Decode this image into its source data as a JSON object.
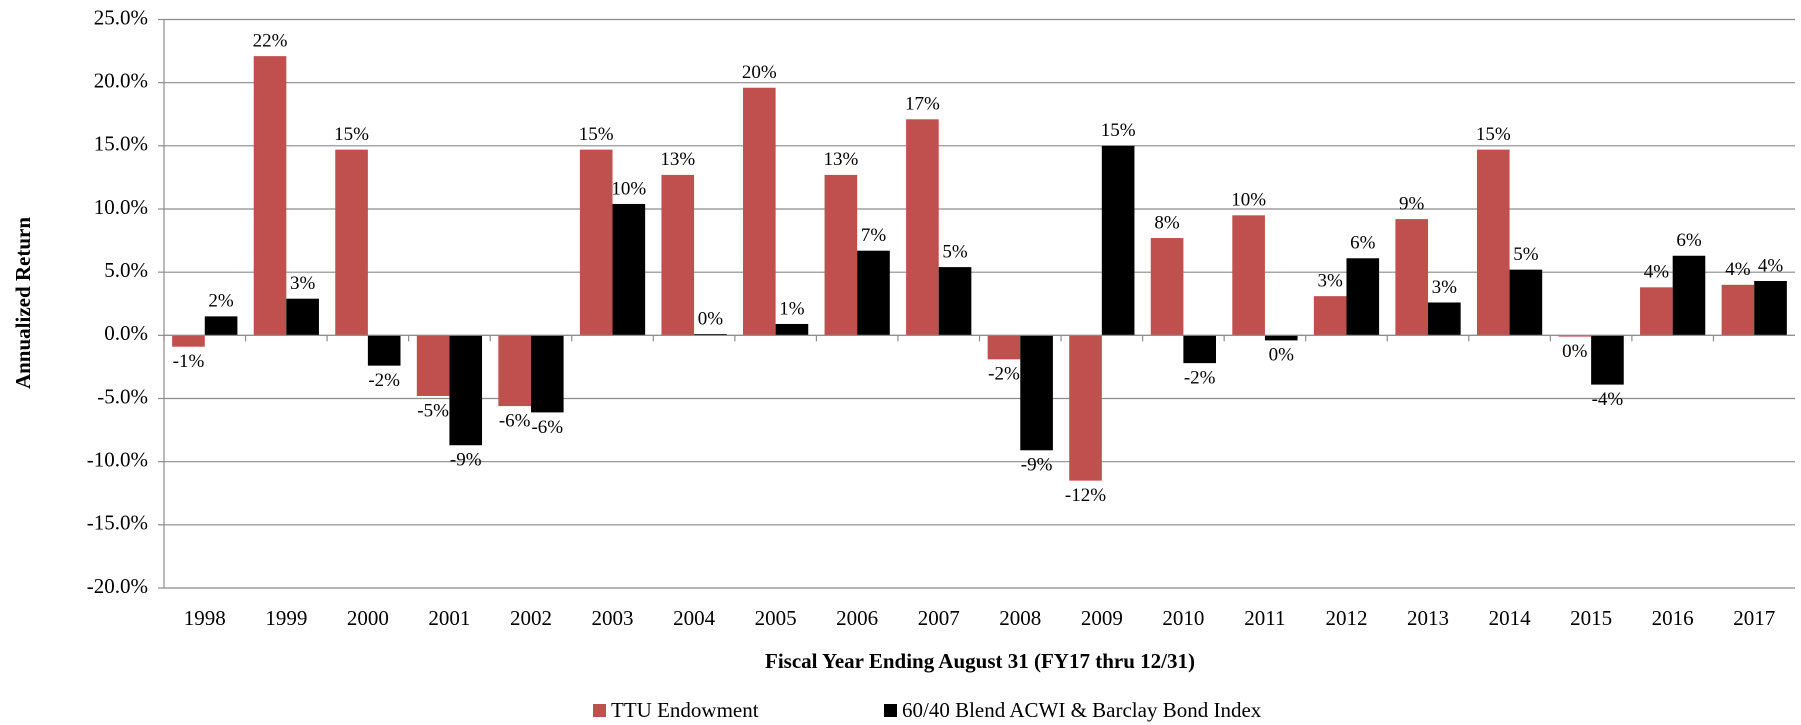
{
  "chart_data": {
    "type": "bar",
    "x_label": "Fiscal Year Ending August 31 (FY17 thru 12/31)",
    "y_label": "Annualized Return",
    "categories": [
      "1998",
      "1999",
      "2000",
      "2001",
      "2002",
      "2003",
      "2004",
      "2005",
      "2006",
      "2007",
      "2008",
      "2009",
      "2010",
      "2011",
      "2012",
      "2013",
      "2014",
      "2015",
      "2016",
      "2017"
    ],
    "series": [
      {
        "name": "TTU Endowment",
        "color": "#c0504d",
        "values": [
          -0.9,
          22.1,
          14.7,
          -4.8,
          -5.6,
          14.7,
          12.7,
          19.6,
          12.7,
          17.1,
          -1.9,
          -11.5,
          7.7,
          9.5,
          3.1,
          9.2,
          14.7,
          -0.1,
          3.8,
          4.0
        ],
        "value_labels": [
          "-1%",
          "22%",
          "15%",
          "-5%",
          "-6%",
          "15%",
          "13%",
          "20%",
          "13%",
          "17%",
          "-2%",
          "-12%",
          "8%",
          "10%",
          "3%",
          "9%",
          "15%",
          "0%",
          "4%",
          "4%"
        ]
      },
      {
        "name": "60/40 Blend ACWI & Barclay Bond Index",
        "color": "#000000",
        "values": [
          1.5,
          2.9,
          -2.4,
          -8.7,
          -6.1,
          10.4,
          0.1,
          0.9,
          6.7,
          5.4,
          -9.1,
          15.0,
          -2.2,
          -0.4,
          6.1,
          2.6,
          5.2,
          -3.9,
          6.3,
          4.3
        ],
        "value_labels": [
          "2%",
          "3%",
          "-2%",
          "-9%",
          "-6%",
          "10%",
          "0%",
          "1%",
          "7%",
          "5%",
          "-9%",
          "15%",
          "-2%",
          "0%",
          "6%",
          "3%",
          "5%",
          "-4%",
          "6%",
          "4%"
        ]
      }
    ],
    "ylim": [
      -20,
      25
    ],
    "yticks": [
      {
        "value": -20,
        "label": "-20.0%"
      },
      {
        "value": -15,
        "label": "-15.0%"
      },
      {
        "value": -10,
        "label": "-10.0%"
      },
      {
        "value": -5,
        "label": "-5.0%"
      },
      {
        "value": 0,
        "label": "0.0%"
      },
      {
        "value": 5,
        "label": "5.0%"
      },
      {
        "value": 10,
        "label": "10.0%"
      },
      {
        "value": 15,
        "label": "15.0%"
      },
      {
        "value": 20,
        "label": "20.0%"
      },
      {
        "value": 25,
        "label": "25.0%"
      }
    ],
    "grid": true,
    "legend": "bottom"
  }
}
